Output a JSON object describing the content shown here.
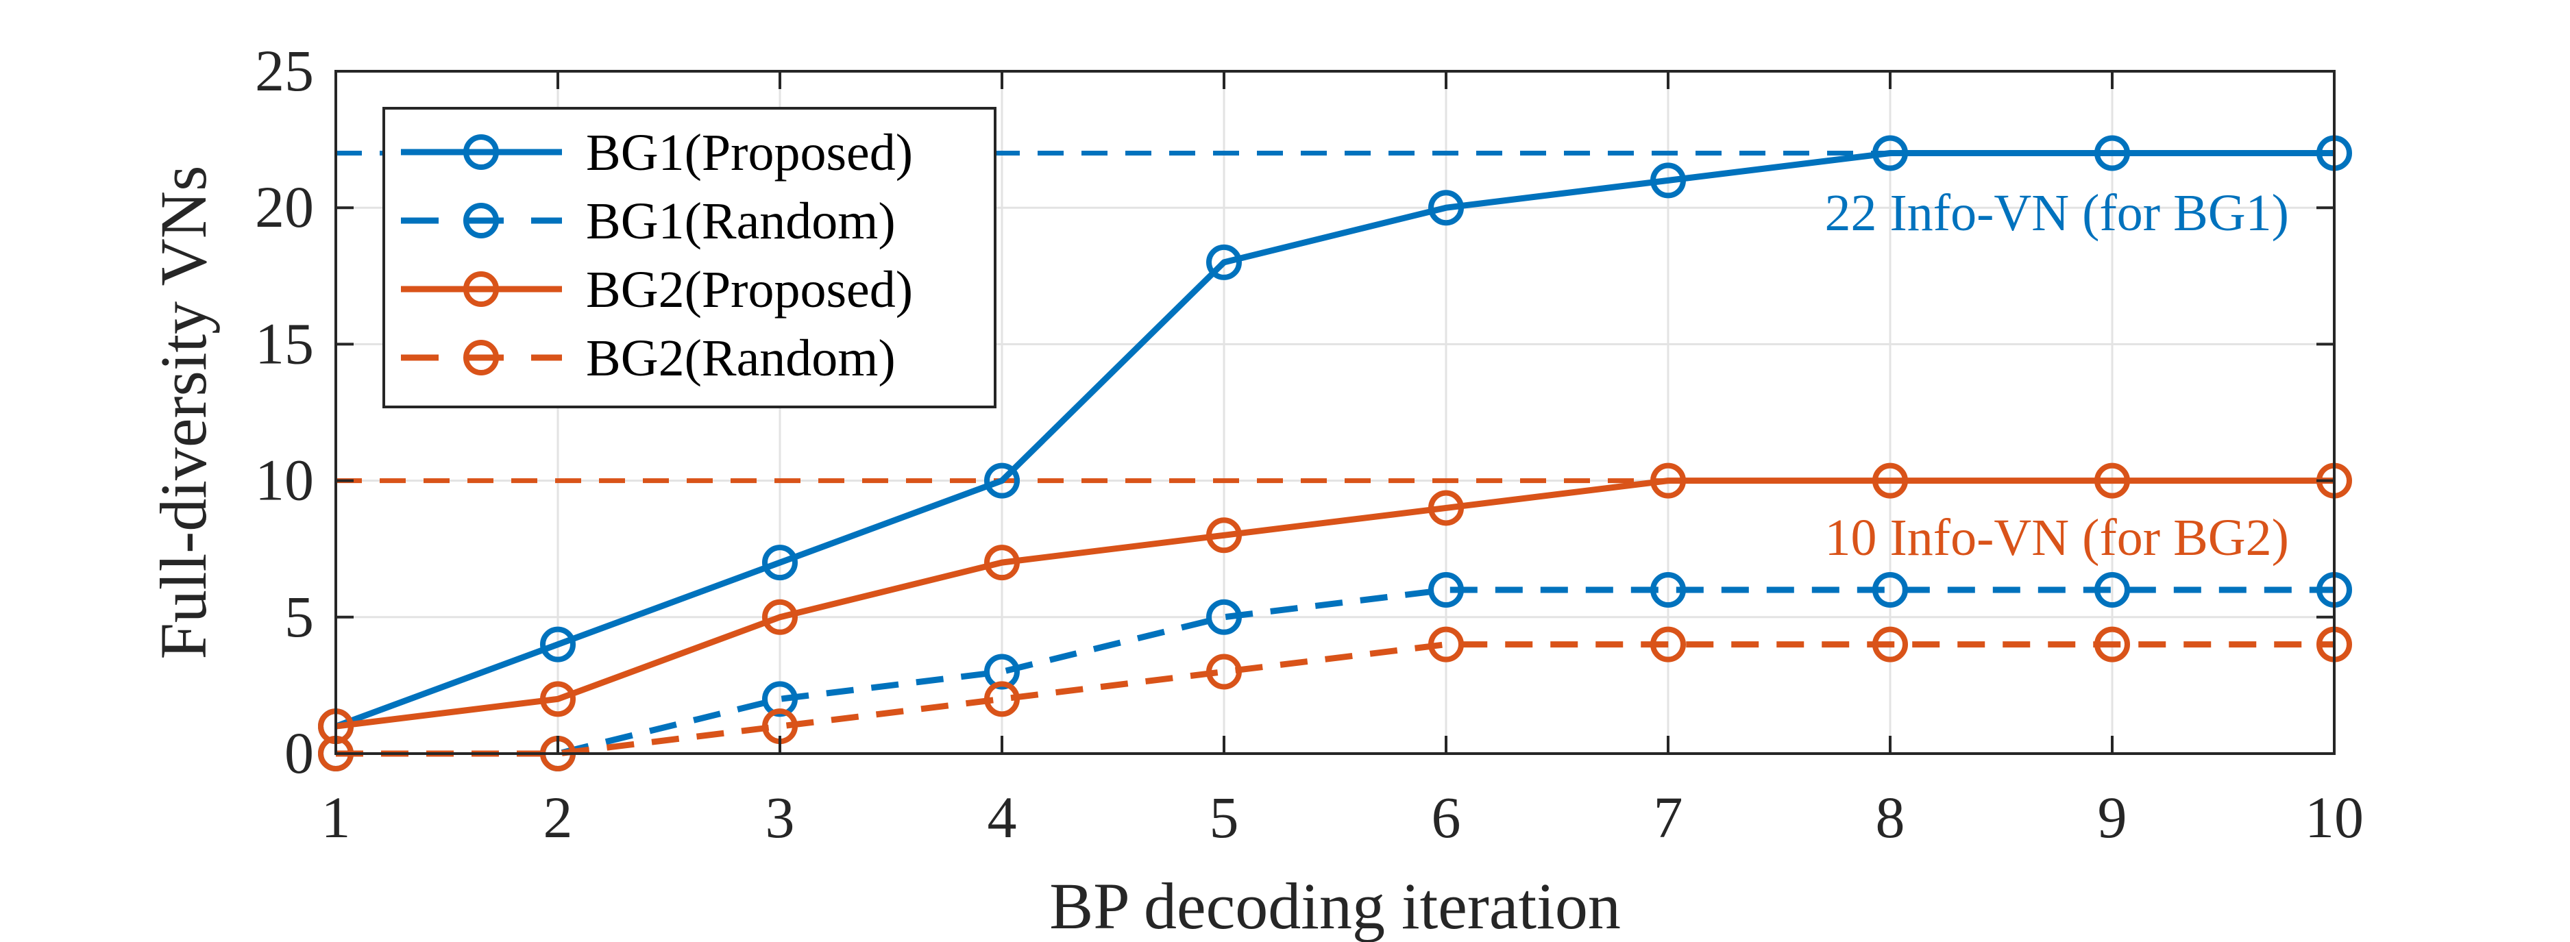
{
  "chart_data": {
    "type": "line",
    "xlabel": "BP decoding iteration",
    "ylabel": "Full-diversity VNs",
    "xlim": [
      1,
      10
    ],
    "ylim": [
      0,
      25
    ],
    "xticks": [
      "1",
      "2",
      "3",
      "4",
      "5",
      "6",
      "7",
      "8",
      "9",
      "10"
    ],
    "yticks": [
      "0",
      "5",
      "10",
      "15",
      "20",
      "25"
    ],
    "grid": true,
    "legend_position": "top-left",
    "x": [
      1,
      2,
      3,
      4,
      5,
      6,
      7,
      8,
      9,
      10
    ],
    "series": [
      {
        "name": "BG1(Proposed)",
        "color": "#0072BD",
        "dash": false,
        "values": [
          1,
          4,
          7,
          10,
          18,
          20,
          21,
          22,
          22,
          22
        ]
      },
      {
        "name": "BG1(Random)",
        "color": "#0072BD",
        "dash": true,
        "values": [
          0,
          0,
          2,
          3,
          5,
          6,
          6,
          6,
          6,
          6
        ]
      },
      {
        "name": "BG2(Proposed)",
        "color": "#D95319",
        "dash": false,
        "values": [
          1,
          2,
          5,
          7,
          8,
          9,
          10,
          10,
          10,
          10
        ]
      },
      {
        "name": "BG2(Random)",
        "color": "#D95319",
        "dash": true,
        "values": [
          0,
          0,
          1,
          2,
          3,
          4,
          4,
          4,
          4,
          4
        ]
      }
    ],
    "reference_lines": [
      {
        "y": 22,
        "color": "#0072BD",
        "label": "22 Info-VN (for BG1)"
      },
      {
        "y": 10,
        "color": "#D95319",
        "label": "10 Info-VN (for BG2)"
      }
    ]
  }
}
